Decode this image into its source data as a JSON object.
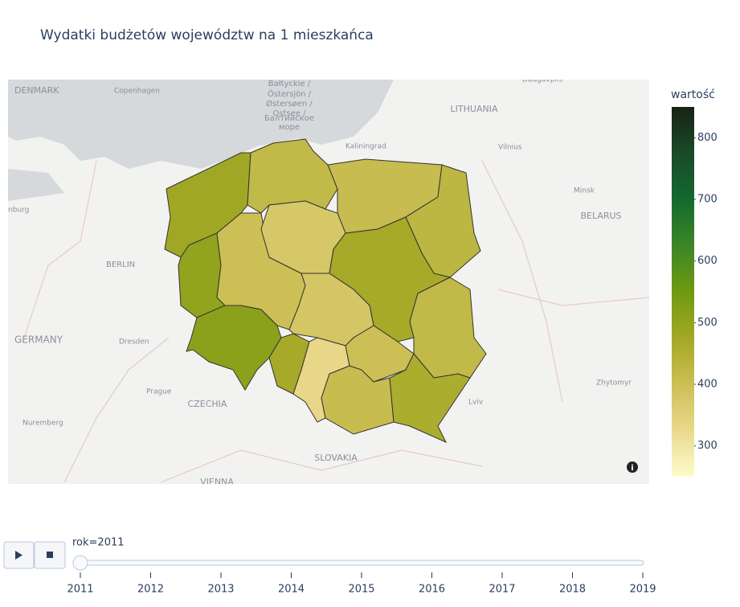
{
  "chart_data": {
    "type": "choropleth",
    "title": "Wydatki budżetów województw na 1 mieszkańca",
    "colorbar_title": "wartość",
    "values": [
      480,
      420,
      410,
      430,
      500,
      400,
      375,
      470,
      380,
      420,
      510,
      470,
      330,
      400,
      410,
      460
    ],
    "clim": [
      250,
      850
    ],
    "cticks": [
      300,
      400,
      500,
      600,
      700,
      800
    ],
    "colorscale": [
      "#fefccd",
      "#ead98d",
      "#ccbf55",
      "#a3a825",
      "#6f9a10",
      "#3b8626",
      "#13692f",
      "#1a4a2a",
      "#172313"
    ],
    "map_labels": [
      "DENMARK",
      "Copenhagen",
      "Bałtyckie /",
      "Östersjön /",
      "Østersøen /",
      "Ostsee /",
      "Балтийское",
      "море",
      "Kaliningrad",
      "LITHUANIA",
      "Daugavpils",
      "Vilnius",
      "Minsk",
      "BELARUS",
      "BERLIN",
      "GERMANY",
      "Dresden",
      "Prague",
      "CZECHIA",
      "Nuremberg",
      "SLOVAKIA",
      "VIENNA",
      "Zhytomyr",
      "Lviv",
      "nburg"
    ],
    "slider_label": "rok=2011",
    "slider_steps": [
      2011,
      2012,
      2013,
      2014,
      2015,
      2016,
      2017,
      2018,
      2019
    ]
  }
}
